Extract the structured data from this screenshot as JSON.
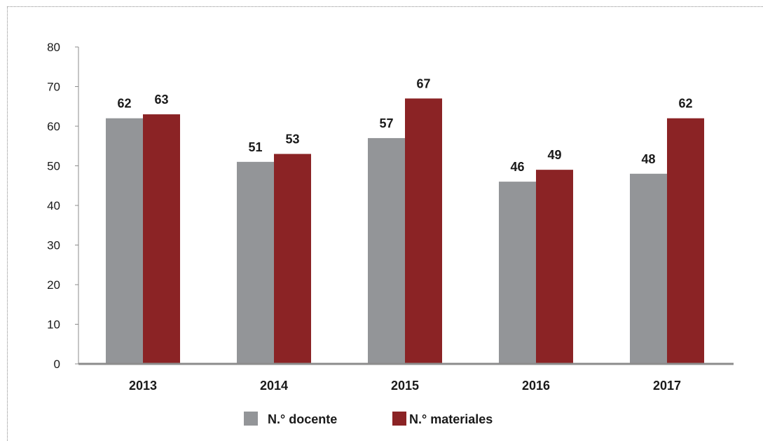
{
  "chart_data": {
    "type": "bar",
    "title": "",
    "xlabel": "",
    "ylabel": "",
    "categories": [
      "2013",
      "2014",
      "2015",
      "2016",
      "2017"
    ],
    "series": [
      {
        "name": "N.° docente",
        "values": [
          62,
          51,
          57,
          46,
          48
        ],
        "color": "#939598"
      },
      {
        "name": "N.° materiales",
        "values": [
          63,
          53,
          67,
          49,
          62
        ],
        "color": "#8b2325"
      }
    ],
    "ylim": [
      0,
      80
    ],
    "yticks": [
      0,
      10,
      20,
      30,
      40,
      50,
      60,
      70,
      80
    ],
    "grid": false,
    "data_labels": true,
    "legend_position": "bottom-center"
  }
}
